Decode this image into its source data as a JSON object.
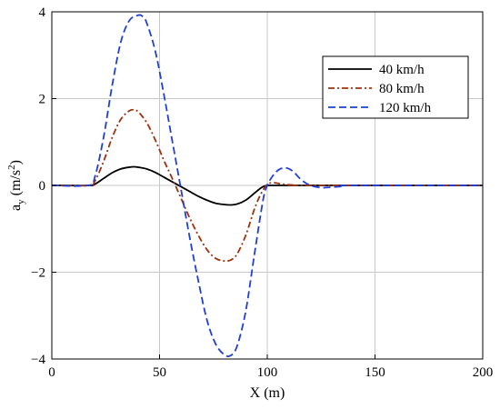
{
  "chart_data": {
    "type": "line",
    "xlabel": "X (m)",
    "ylabel": {
      "base": "a",
      "sub": "y",
      "unit_open": " (m/s",
      "sup": "2",
      "unit_close": ")"
    },
    "xlim": [
      0,
      200
    ],
    "ylim": [
      -4,
      4
    ],
    "x_ticks": [
      0,
      50,
      100,
      150,
      200
    ],
    "y_ticks": [
      -4,
      -2,
      0,
      2,
      4
    ],
    "x_tick_labels": [
      "0",
      "50",
      "100",
      "150",
      "200"
    ],
    "y_tick_labels": [
      "−4",
      "−2",
      "0",
      "2",
      "4"
    ],
    "grid": true,
    "legend_position": "top-right",
    "series": [
      {
        "name": "40 km/h",
        "color": "#000000",
        "dash": "solid",
        "x": [
          0,
          17,
          20,
          24,
          28,
          32,
          36,
          38,
          40,
          44,
          48,
          52,
          56,
          60,
          64,
          68,
          72,
          76,
          80,
          83,
          86,
          90,
          94,
          97,
          99,
          102,
          106,
          112,
          200
        ],
        "y": [
          0,
          0,
          0.03,
          0.16,
          0.29,
          0.38,
          0.42,
          0.43,
          0.42,
          0.38,
          0.3,
          0.19,
          0.08,
          -0.03,
          -0.14,
          -0.25,
          -0.34,
          -0.41,
          -0.44,
          -0.45,
          -0.43,
          -0.34,
          -0.18,
          -0.06,
          -0.01,
          0,
          0,
          0,
          0
        ]
      },
      {
        "name": "80 km/h",
        "color": "#a0300c",
        "dash": "dashdot",
        "x": [
          0,
          17,
          20,
          24,
          28,
          32,
          36,
          38,
          40,
          44,
          48,
          52,
          56,
          60,
          64,
          68,
          72,
          76,
          80,
          83,
          86,
          90,
          94,
          97,
          100,
          103,
          107,
          112,
          118,
          200
        ],
        "y": [
          0,
          0,
          0.1,
          0.55,
          1.1,
          1.52,
          1.72,
          1.74,
          1.7,
          1.45,
          1.05,
          0.58,
          0.15,
          -0.3,
          -0.75,
          -1.15,
          -1.48,
          -1.68,
          -1.74,
          -1.72,
          -1.58,
          -1.15,
          -0.55,
          -0.2,
          0.02,
          0.06,
          0.03,
          0.01,
          0,
          0
        ]
      },
      {
        "name": "120 km/h",
        "color": "#1f3fd6",
        "dash": "dashed",
        "x": [
          0,
          17,
          20,
          24,
          28,
          32,
          36,
          40,
          42,
          44,
          48,
          52,
          56,
          60,
          64,
          68,
          72,
          76,
          80,
          83,
          86,
          90,
          94,
          98,
          100,
          103,
          106,
          109,
          112,
          116,
          120,
          125,
          130,
          135,
          140,
          200
        ],
        "y": [
          0,
          0,
          0.2,
          1.1,
          2.3,
          3.3,
          3.8,
          3.92,
          3.9,
          3.75,
          3.1,
          2.1,
          1.0,
          -0.1,
          -1.2,
          -2.2,
          -3.1,
          -3.65,
          -3.9,
          -3.92,
          -3.7,
          -2.9,
          -1.6,
          -0.35,
          0.0,
          0.25,
          0.38,
          0.4,
          0.32,
          0.12,
          0.0,
          -0.05,
          -0.04,
          -0.02,
          0,
          0
        ]
      }
    ]
  }
}
